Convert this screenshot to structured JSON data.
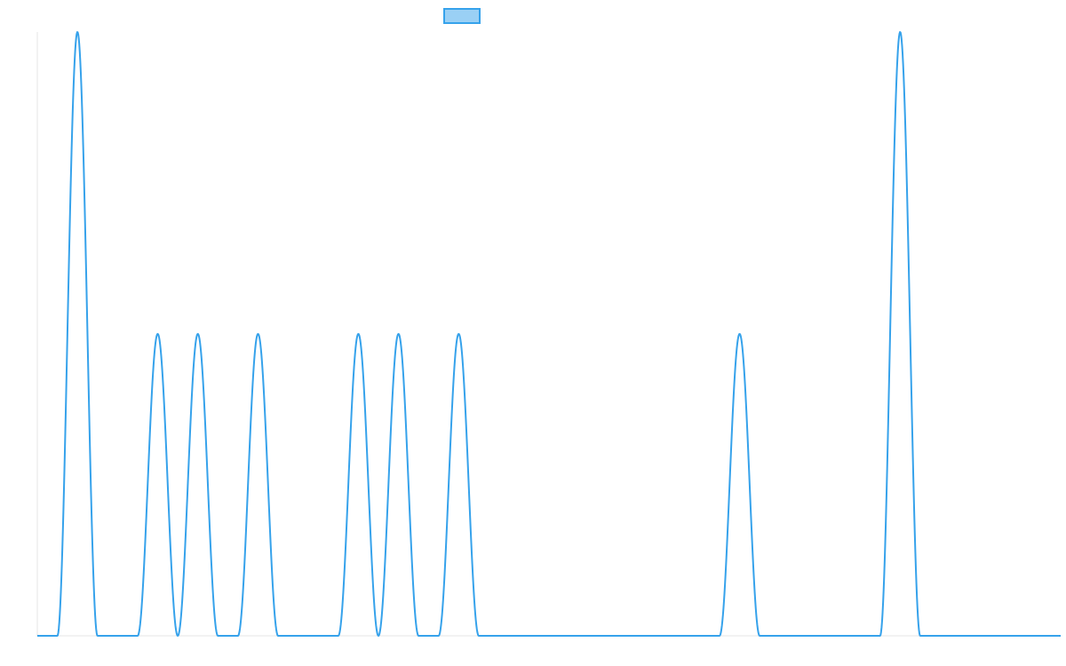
{
  "chart_data": {
    "type": "line",
    "title": "",
    "xlabel": "",
    "ylabel": "",
    "xlim": [
      0,
      51
    ],
    "ylim": [
      0,
      2
    ],
    "grid": false,
    "legend": {
      "placement": "top-center",
      "show_text": false
    },
    "series": [
      {
        "color": "#36a2eb",
        "fill_color": "#9ad0f5",
        "peak_half_width": 1,
        "peaks": [
          {
            "x": 2,
            "y": 2
          },
          {
            "x": 6,
            "y": 1
          },
          {
            "x": 8,
            "y": 1
          },
          {
            "x": 11,
            "y": 1
          },
          {
            "x": 16,
            "y": 1
          },
          {
            "x": 18,
            "y": 1
          },
          {
            "x": 21,
            "y": 1
          },
          {
            "x": 35,
            "y": 1
          },
          {
            "x": 43,
            "y": 2
          }
        ]
      }
    ]
  }
}
